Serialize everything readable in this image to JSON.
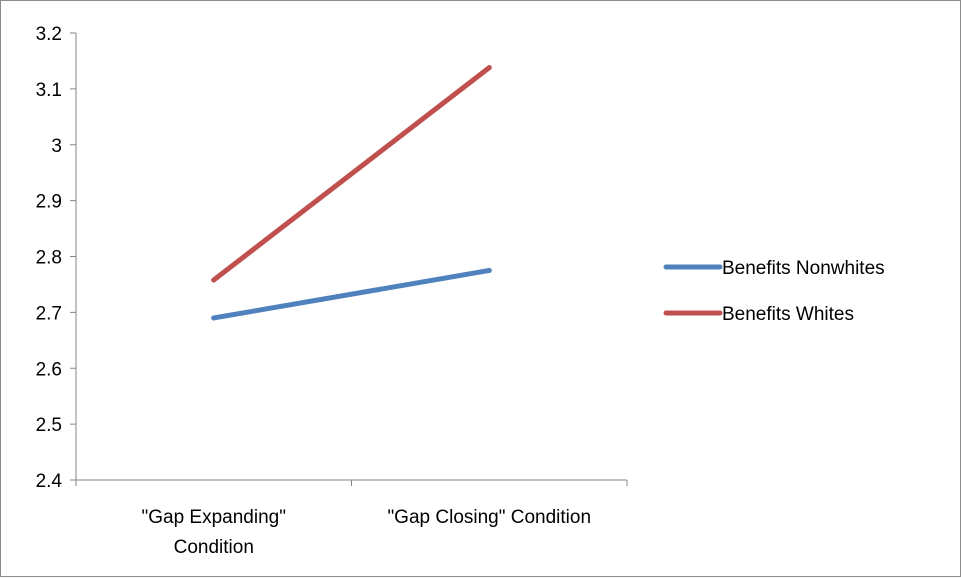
{
  "chart_data": {
    "type": "line",
    "title": "",
    "xlabel": "",
    "ylabel": "",
    "categories": [
      [
        "\"Gap Expanding\"",
        "Condition"
      ],
      [
        "\"Gap Closing\" Condition"
      ]
    ],
    "ylim": [
      2.4,
      3.2
    ],
    "yticks": [
      "2.4",
      "2.5",
      "2.6",
      "2.7",
      "2.8",
      "2.9",
      "3",
      "3.1",
      "3.2"
    ],
    "grid": false,
    "legend_position": "right",
    "series": [
      {
        "name": "Benefits Nonwhites",
        "color": "#4f81bd",
        "values": [
          2.69,
          2.775
        ]
      },
      {
        "name": "Benefits Whites",
        "color": "#c0504d",
        "values": [
          2.758,
          3.138
        ]
      }
    ]
  }
}
